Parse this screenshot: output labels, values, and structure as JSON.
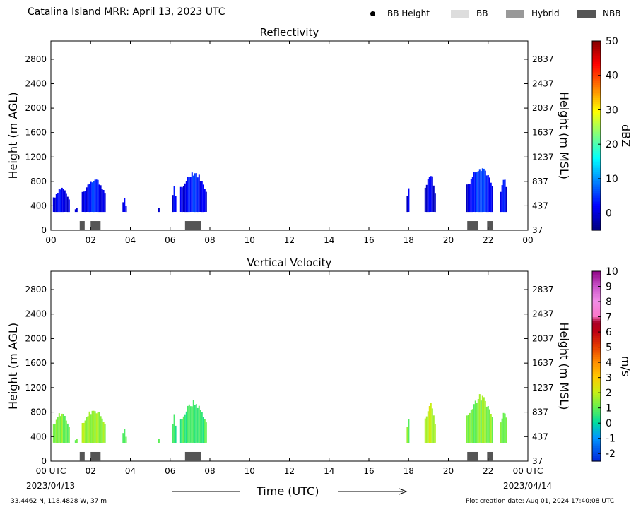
{
  "header": {
    "title": "Catalina Island MRR:  April 13, 2023 UTC",
    "legend": [
      {
        "label": "BB Height",
        "marker": "dot",
        "color": "#000000"
      },
      {
        "label": "BB",
        "marker": "box",
        "color": "#dddddd"
      },
      {
        "label": "Hybrid",
        "marker": "box",
        "color": "#999999"
      },
      {
        "label": "NBB",
        "marker": "box",
        "color": "#555555"
      }
    ]
  },
  "footer": {
    "location": "33.4462 N, 118.4828 W, 37 m",
    "creation": "Plot creation date: Aug 01, 2024 17:40:08 UTC",
    "time_label": "Time (UTC)",
    "start_date": "2023/04/13",
    "end_date": "2023/04/14"
  },
  "chart_data": [
    {
      "type": "heatmap",
      "title": "Reflectivity",
      "ylabel": "Height (m AGL)",
      "ylabel_right": "Height (m MSL)",
      "xlim": [
        0,
        24
      ],
      "ylim": [
        0,
        3100
      ],
      "x_ticks": [
        "00",
        "02",
        "04",
        "06",
        "08",
        "10",
        "12",
        "14",
        "16",
        "18",
        "20",
        "22",
        "00"
      ],
      "y_ticks": [
        0,
        400,
        800,
        1200,
        1600,
        2000,
        2400,
        2800
      ],
      "y_ticks_right": [
        "37",
        "437",
        "837",
        "1237",
        "1637",
        "2037",
        "2437",
        "2837"
      ],
      "colorbar": {
        "label": "dBZ",
        "range": [
          -5,
          50
        ],
        "ticks": [
          0,
          10,
          20,
          30,
          40,
          50
        ],
        "scheme": "jet"
      },
      "echoes": [
        {
          "start": 0.1,
          "end": 0.9,
          "top": 720,
          "core": 0.25
        },
        {
          "start": 1.2,
          "end": 1.3,
          "top": 380,
          "core": 0.2
        },
        {
          "start": 1.55,
          "end": 2.75,
          "top": 880,
          "core": 0.45
        },
        {
          "start": 3.6,
          "end": 3.7,
          "top": 580,
          "core": 0.1
        },
        {
          "start": 3.75,
          "end": 3.8,
          "top": 470,
          "core": 0.1
        },
        {
          "start": 5.4,
          "end": 5.45,
          "top": 420,
          "core": 0.1
        },
        {
          "start": 6.1,
          "end": 6.25,
          "top": 780,
          "core": 0.2
        },
        {
          "start": 6.5,
          "end": 7.8,
          "top": 1000,
          "core": 0.4
        },
        {
          "start": 17.9,
          "end": 18.0,
          "top": 770,
          "core": 0.1
        },
        {
          "start": 18.8,
          "end": 19.3,
          "top": 980,
          "core": 0.3
        },
        {
          "start": 20.9,
          "end": 22.25,
          "top": 1100,
          "core": 0.6
        },
        {
          "start": 22.6,
          "end": 22.95,
          "top": 880,
          "core": 0.2
        }
      ],
      "bright_band": [
        {
          "start": 1.45,
          "end": 1.7,
          "class": "NBB"
        },
        {
          "start": 2.0,
          "end": 2.5,
          "class": "NBB"
        },
        {
          "start": 6.75,
          "end": 7.55,
          "class": "NBB"
        },
        {
          "start": 20.95,
          "end": 21.5,
          "class": "NBB"
        },
        {
          "start": 21.95,
          "end": 22.25,
          "class": "NBB"
        }
      ]
    },
    {
      "type": "heatmap",
      "title": "Vertical Velocity",
      "ylabel": "Height (m AGL)",
      "ylabel_right": "Height (m MSL)",
      "xlim": [
        0,
        24
      ],
      "ylim": [
        0,
        3100
      ],
      "x_ticks": [
        "00 UTC",
        "02",
        "04",
        "06",
        "08",
        "10",
        "12",
        "14",
        "16",
        "18",
        "20",
        "22",
        "00 UTC"
      ],
      "y_ticks": [
        0,
        400,
        800,
        1200,
        1600,
        2000,
        2400,
        2800
      ],
      "y_ticks_right": [
        "37",
        "437",
        "837",
        "1237",
        "1637",
        "2037",
        "2437",
        "2837"
      ],
      "colorbar": {
        "label": "m/s",
        "range": [
          -2.5,
          10
        ],
        "ticks": [
          -2,
          -1,
          0,
          1,
          2,
          3,
          4,
          5,
          6,
          7,
          8,
          9,
          10
        ],
        "scheme": "velocity"
      },
      "echoes": [
        {
          "start": 0.1,
          "end": 0.9,
          "top": 820,
          "value": 1.2
        },
        {
          "start": 1.2,
          "end": 1.3,
          "top": 380,
          "value": 1.0
        },
        {
          "start": 1.55,
          "end": 2.75,
          "top": 880,
          "value": 1.6
        },
        {
          "start": 3.6,
          "end": 3.7,
          "top": 580,
          "value": 1.0
        },
        {
          "start": 3.75,
          "end": 3.8,
          "top": 470,
          "value": 1.0
        },
        {
          "start": 5.4,
          "end": 5.45,
          "top": 420,
          "value": 0.8
        },
        {
          "start": 6.1,
          "end": 6.25,
          "top": 820,
          "value": 0.3
        },
        {
          "start": 6.5,
          "end": 7.8,
          "top": 1000,
          "value": 0.6
        },
        {
          "start": 17.9,
          "end": 18.0,
          "top": 770,
          "value": 1.2
        },
        {
          "start": 18.8,
          "end": 19.3,
          "top": 980,
          "value": 1.9
        },
        {
          "start": 20.9,
          "end": 22.25,
          "top": 1100,
          "value": 1.3
        },
        {
          "start": 22.6,
          "end": 22.95,
          "top": 880,
          "value": 1.2
        }
      ],
      "bright_band": [
        {
          "start": 1.45,
          "end": 1.7,
          "class": "NBB"
        },
        {
          "start": 2.0,
          "end": 2.5,
          "class": "NBB"
        },
        {
          "start": 6.75,
          "end": 7.55,
          "class": "NBB"
        },
        {
          "start": 20.95,
          "end": 21.5,
          "class": "NBB"
        },
        {
          "start": 21.95,
          "end": 22.25,
          "class": "NBB"
        }
      ]
    }
  ]
}
